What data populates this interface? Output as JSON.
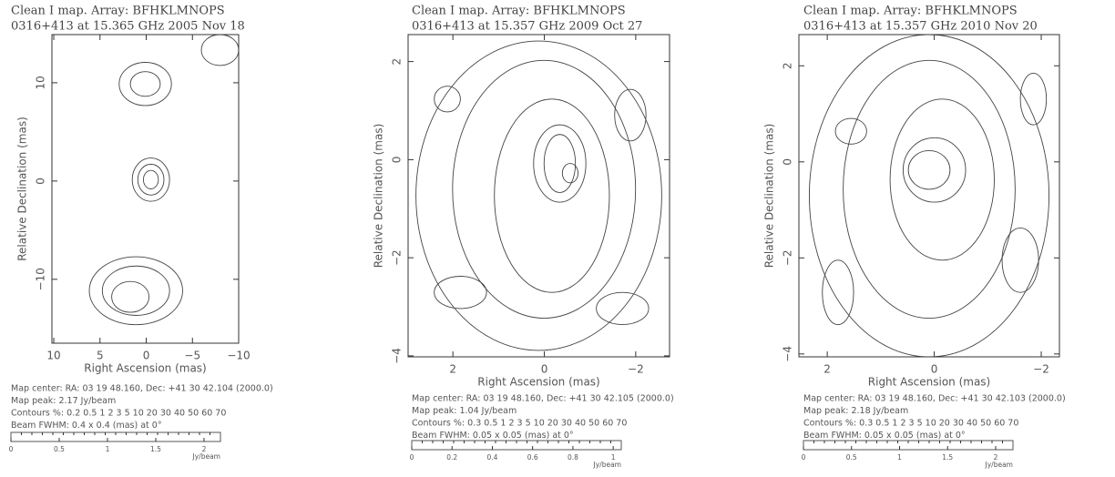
{
  "chart_data": [
    {
      "type": "contour",
      "title": "Clean I map.  Array:  BFHKLMNOPS",
      "subtitle": "0316+413 at 15.365 GHz 2005 Nov 18",
      "xlabel": "Right Ascension  (mas)",
      "ylabel": "Relative Declination  (mas)",
      "xlim": [
        10.2,
        -10
      ],
      "ylim": [
        -16.5,
        14.9
      ],
      "xticks": [
        10,
        5,
        0,
        {
          "value": -5,
          "label": "−5"
        },
        {
          "value": -10,
          "label": "−10"
        }
      ],
      "yticks": [
        {
          "value": -10,
          "label": "−10"
        },
        0,
        10
      ],
      "info": [
        "Map center:  RA: 03 19 48.160,  Dec: +41 30 42.104 (2000.0)",
        "Map peak: 2.17 Jy/beam",
        "Contours %: 0.2 0.5 1 2 3 5 10 20 30 40 50 60 70",
        "Beam FWHM: 0.4 x 0.4 (mas) at 0°"
      ],
      "zlim": [
        0,
        2.17
      ],
      "zticks": [
        0,
        0.5,
        1,
        1.5,
        2
      ],
      "zlabel": "Jy/beam"
    },
    {
      "type": "contour",
      "title": "Clean I map.  Array:  BFHKLMNOPS",
      "subtitle": "0316+413 at 15.357 GHz 2009 Oct 27",
      "xlabel": "Right Ascension  (mas)",
      "ylabel": "Relative Declination  (mas)",
      "xlim": [
        2.98,
        -2.74
      ],
      "ylim": [
        -4.02,
        2.55
      ],
      "xticks": [
        2,
        0,
        {
          "value": -2,
          "label": "−2"
        }
      ],
      "yticks": [
        {
          "value": -4,
          "label": "−4"
        },
        {
          "value": -2,
          "label": "−2"
        },
        0,
        2
      ],
      "info": [
        "Map center:  RA: 03 19 48.160,  Dec: +41 30 42.105 (2000.0)",
        "Map peak: 1.04 Jy/beam",
        "Contours %: 0.3 0.5 1 2 3 5 10 20 30 40 50 60 70",
        "Beam FWHM: 0.05 x 0.05 (mas) at 0°"
      ],
      "zlim": [
        0,
        1.04
      ],
      "zticks": [
        0,
        0.2,
        0.4,
        0.6,
        0.8,
        1
      ],
      "zlabel": "Jy/beam"
    },
    {
      "type": "contour",
      "title": "Clean I map.  Array:  BFHKLMNOPS",
      "subtitle": "0316+413 at 15.357 GHz 2010 Nov 20",
      "xlabel": "Right Ascension  (mas)",
      "ylabel": "Relative Declination  (mas)",
      "xlim": [
        2.53,
        -2.34
      ],
      "ylim": [
        -4.06,
        2.65
      ],
      "xticks": [
        2,
        0,
        {
          "value": -2,
          "label": "−2"
        }
      ],
      "yticks": [
        {
          "value": -4,
          "label": "−4"
        },
        {
          "value": -2,
          "label": "−2"
        },
        0,
        2
      ],
      "info": [
        "Map center:  RA: 03 19 48.160,  Dec: +41 30 42.103 (2000.0)",
        "Map peak: 2.18 Jy/beam",
        "Contours %: 0.3 0.5 1 2 3 5 10 20 30 40 50 60 70",
        "Beam FWHM: 0.05 x 0.05 (mas) at 0°"
      ],
      "zlim": [
        0,
        2.18
      ],
      "zticks": [
        0,
        0.5,
        1,
        1.5,
        2
      ],
      "zlabel": "Jy/beam"
    }
  ]
}
